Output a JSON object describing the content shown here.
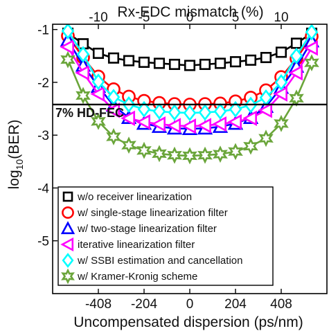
{
  "chart_data": {
    "type": "line",
    "xlabel": "Uncompensated dispersion (ps/nm)",
    "top_xlabel": "Rx-EDC mismatch (%)",
    "ylabel_main": "log",
    "ylabel_sub": "10",
    "ylabel_tail": "(BER)",
    "xlim": [
      -612,
      612
    ],
    "ylim": [
      -6,
      -0.9
    ],
    "x_ticks": [
      -408,
      -204,
      0,
      204,
      408
    ],
    "x_tick_labels": [
      "-408",
      "-204",
      "0",
      "204",
      "408"
    ],
    "top_ticks": [
      -10,
      -5,
      0,
      5,
      10
    ],
    "top_tick_labels": [
      "-10",
      "-5",
      "0",
      "5",
      "10"
    ],
    "y_ticks": [
      -1,
      -2,
      -3,
      -4,
      -5
    ],
    "y_tick_labels": [
      "-1",
      "-2",
      "-3",
      "-4",
      "-5"
    ],
    "threshold": {
      "y": -2.42,
      "label": "7% HD-FEC"
    },
    "legend_position": "bottom-left",
    "x": [
      -544,
      -476,
      -408,
      -340,
      -272,
      -204,
      -136,
      -68,
      0,
      68,
      136,
      204,
      272,
      340,
      408,
      476,
      544
    ],
    "series": [
      {
        "name": "w/o receiver linearization",
        "color": "#000000",
        "marker": "square",
        "values": [
          -1.07,
          -1.27,
          -1.45,
          -1.54,
          -1.59,
          -1.62,
          -1.64,
          -1.66,
          -1.68,
          -1.66,
          -1.64,
          -1.61,
          -1.58,
          -1.53,
          -1.43,
          -1.26,
          -1.07
        ]
      },
      {
        "name": "w/ single-stage linearization filter",
        "color": "#ff0000",
        "marker": "circle",
        "values": [
          -1.12,
          -1.53,
          -1.89,
          -2.13,
          -2.27,
          -2.35,
          -2.39,
          -2.41,
          -2.42,
          -2.41,
          -2.4,
          -2.36,
          -2.29,
          -2.15,
          -1.9,
          -1.55,
          -1.13
        ]
      },
      {
        "name": "w/ two-stage linearization filter",
        "color": "#0000ff",
        "marker": "triangle-up",
        "values": [
          -1.2,
          -1.68,
          -2.08,
          -2.44,
          -2.67,
          -2.78,
          -2.84,
          -2.87,
          -2.88,
          -2.87,
          -2.84,
          -2.78,
          -2.67,
          -2.46,
          -2.1,
          -1.7,
          -1.22
        ]
      },
      {
        "name": "iterative linearization filter",
        "color": "#ff00ff",
        "marker": "triangle-left",
        "values": [
          -1.33,
          -1.82,
          -2.22,
          -2.53,
          -2.68,
          -2.75,
          -2.79,
          -2.82,
          -2.83,
          -2.82,
          -2.79,
          -2.75,
          -2.68,
          -2.53,
          -2.22,
          -1.82,
          -1.35
        ]
      },
      {
        "name": "w/ SSBI estimation and cancellation",
        "color": "#00ffff",
        "marker": "diamond",
        "values": [
          -1.03,
          -1.47,
          -1.99,
          -2.28,
          -2.42,
          -2.51,
          -2.55,
          -2.57,
          -2.58,
          -2.57,
          -2.55,
          -2.51,
          -2.43,
          -2.29,
          -2.0,
          -1.5,
          -1.05
        ]
      },
      {
        "name": "w/ Kramer-Kronig scheme",
        "color": "#6aa53a",
        "marker": "hexagram",
        "values": [
          -1.57,
          -2.25,
          -2.74,
          -3.03,
          -3.19,
          -3.29,
          -3.35,
          -3.38,
          -3.39,
          -3.38,
          -3.36,
          -3.31,
          -3.21,
          -3.06,
          -2.78,
          -2.3,
          -1.63
        ]
      }
    ]
  }
}
